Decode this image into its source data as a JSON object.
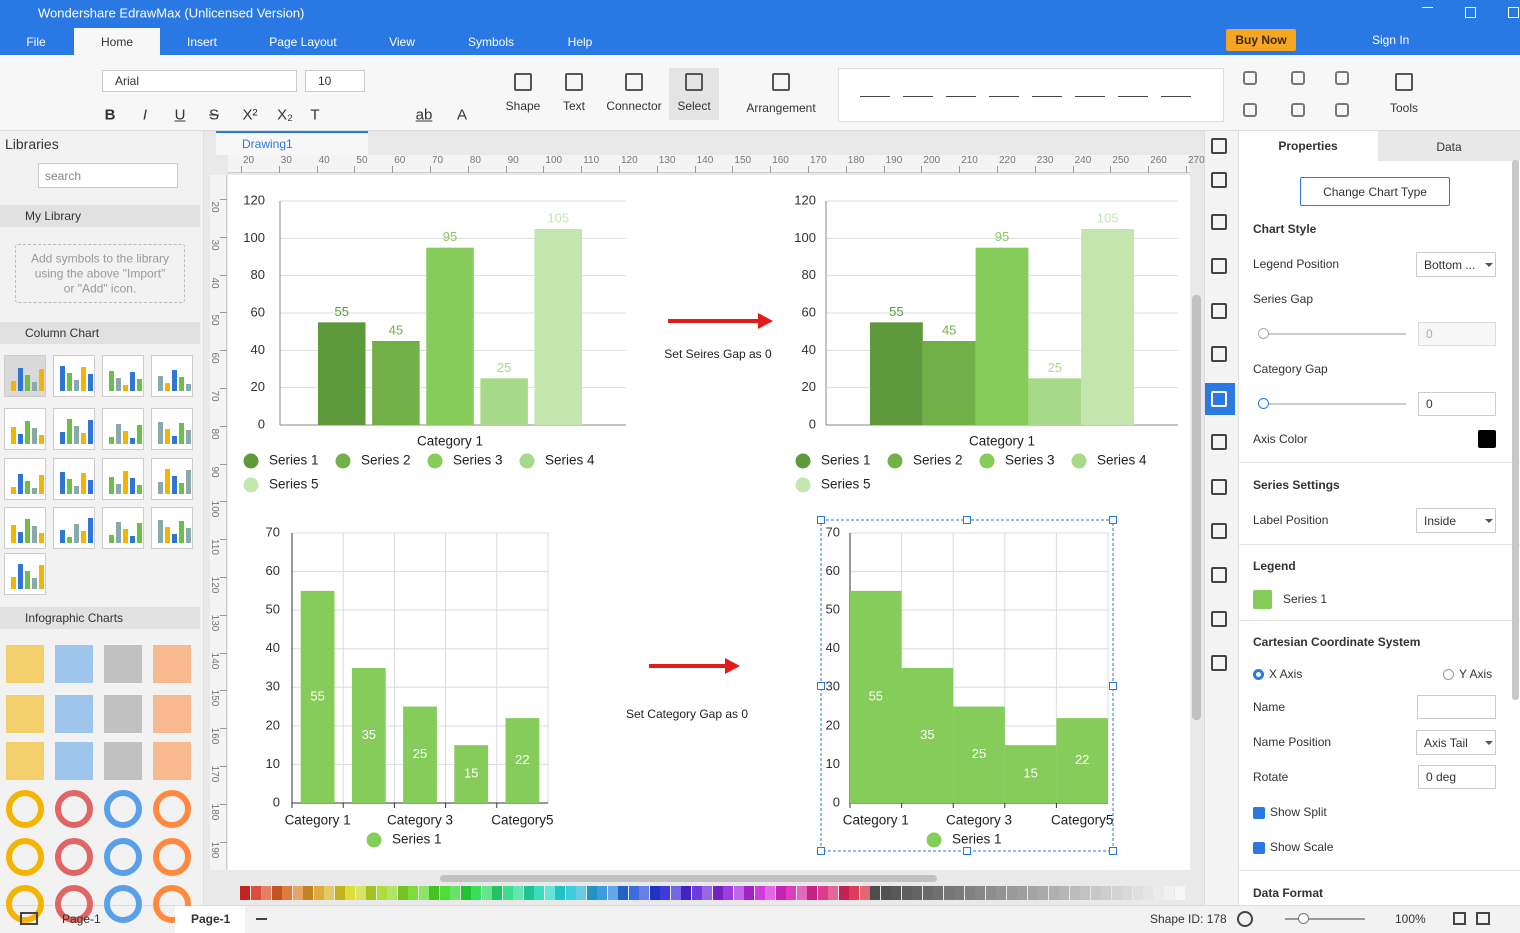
{
  "window": {
    "title": "Wondershare EdrawMax (Unlicensed Version)"
  },
  "menu": {
    "tabs": [
      "File",
      "Home",
      "Insert",
      "Page Layout",
      "View",
      "Symbols",
      "Help"
    ],
    "buy_now": "Buy Now",
    "sign_in": "Sign In"
  },
  "ribbon": {
    "font": "Arial",
    "font_size": 10,
    "format_buttons": [
      "B",
      "I",
      "U",
      "S",
      "X²",
      "X₂",
      "T",
      "ab",
      "A"
    ],
    "tools": [
      "Shape",
      "Text",
      "Connector",
      "Select",
      "Arrangement",
      "Tools"
    ]
  },
  "libraries": {
    "title": "Libraries",
    "search": "search",
    "my_library": "My Library",
    "hint": "Add symbols to the library using the above \"Import\" or \"Add\" icon.",
    "column_chart": "Column Chart",
    "infographic_charts": "Infographic Charts"
  },
  "document": {
    "tab": "Drawing1",
    "ruler_x": [
      20,
      30,
      40,
      50,
      60,
      70,
      80,
      90,
      100,
      110,
      120,
      130,
      140,
      150,
      160,
      170,
      180,
      190,
      200,
      210,
      220,
      230,
      240,
      250,
      260,
      270
    ],
    "ruler_y": [
      20,
      30,
      40,
      50,
      60,
      70,
      80,
      90,
      100,
      110,
      120,
      130,
      140,
      150,
      160,
      170,
      180,
      190
    ]
  },
  "annotations": [
    "Set Seires Gap as 0",
    "Set Category Gap as 0"
  ],
  "chart_data": [
    {
      "type": "bar",
      "categories": [
        "Category 1"
      ],
      "series": [
        {
          "name": "Series 1",
          "color": "#5e9a3b",
          "values": [
            55
          ]
        },
        {
          "name": "Series 2",
          "color": "#72b04a",
          "values": [
            45
          ]
        },
        {
          "name": "Series 3",
          "color": "#86cc5a",
          "values": [
            95
          ]
        },
        {
          "name": "Series 4",
          "color": "#a7da88",
          "values": [
            25
          ]
        },
        {
          "name": "Series 5",
          "color": "#c3e6ae",
          "values": [
            105
          ]
        }
      ],
      "ylim": [
        0,
        120
      ],
      "yticks": [
        0,
        20,
        40,
        60,
        80,
        100,
        120
      ],
      "grid": true,
      "legend": "bottom",
      "label_position": "outside"
    },
    {
      "type": "bar",
      "categories": [
        "Category 1"
      ],
      "series": [
        {
          "name": "Series 1",
          "color": "#5e9a3b",
          "values": [
            55
          ]
        },
        {
          "name": "Series 2",
          "color": "#72b04a",
          "values": [
            45
          ]
        },
        {
          "name": "Series 3",
          "color": "#86cc5a",
          "values": [
            95
          ]
        },
        {
          "name": "Series 4",
          "color": "#a7da88",
          "values": [
            25
          ]
        },
        {
          "name": "Series 5",
          "color": "#c3e6ae",
          "values": [
            105
          ]
        }
      ],
      "ylim": [
        0,
        120
      ],
      "yticks": [
        0,
        20,
        40,
        60,
        80,
        100,
        120
      ],
      "grid": true,
      "legend": "bottom",
      "label_position": "outside"
    },
    {
      "type": "bar",
      "categories": [
        "Category 1",
        null,
        "Category 3",
        null,
        "Category5"
      ],
      "series": [
        {
          "name": "Series 1",
          "color": "#86cc5a",
          "values": [
            55,
            35,
            25,
            15,
            22
          ]
        }
      ],
      "ylim": [
        0,
        70
      ],
      "yticks": [
        0,
        10,
        20,
        30,
        40,
        50,
        60,
        70
      ],
      "grid": true,
      "legend": "bottom",
      "label_position": "inside"
    },
    {
      "type": "bar",
      "categories": [
        "Category 1",
        null,
        "Category 3",
        null,
        "Category5"
      ],
      "series": [
        {
          "name": "Series 1",
          "color": "#86cc5a",
          "values": [
            55,
            35,
            25,
            15,
            22
          ]
        }
      ],
      "ylim": [
        0,
        70
      ],
      "yticks": [
        0,
        10,
        20,
        30,
        40,
        50,
        60,
        70
      ],
      "grid": true,
      "legend": "bottom",
      "label_position": "inside"
    }
  ],
  "properties": {
    "tabs": [
      "Properties",
      "Data"
    ],
    "change_chart_type": "Change Chart Type",
    "chart_style": "Chart Style",
    "legend_position": {
      "label": "Legend Position",
      "value": "Bottom ..."
    },
    "series_gap": {
      "label": "Series Gap",
      "value": 0
    },
    "category_gap": {
      "label": "Category Gap",
      "value": 0
    },
    "axis_color": "Axis Color",
    "series_settings": "Series Settings",
    "label_position": {
      "label": "Label Position",
      "value": "Inside"
    },
    "legend": "Legend",
    "legend_item": "Series 1",
    "cartesian": "Cartesian Coordinate System",
    "x_axis": "X Axis",
    "y_axis": "Y Axis",
    "name": "Name",
    "name_position": {
      "label": "Name Position",
      "value": "Axis Tail"
    },
    "rotate": {
      "label": "Rotate",
      "value": "0 deg"
    },
    "show_split": "Show Split",
    "show_scale": "Show Scale",
    "data_format": "Data Format"
  },
  "status": {
    "page_selector": "Page-1",
    "page_tab": "Page-1",
    "shape_id": "Shape ID: 178",
    "zoom": "100%"
  }
}
